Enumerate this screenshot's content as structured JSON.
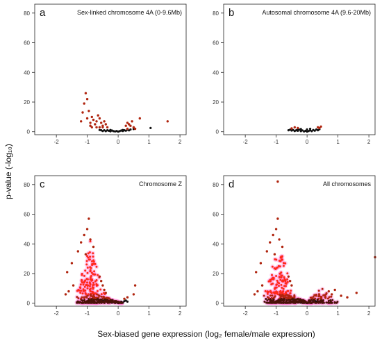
{
  "figure": {
    "xlabel": "Sex-biased gene expression (log₂ female/male expression)",
    "ylabel": "p-value (-log₁₀)"
  },
  "colors": {
    "sig": "#b0250f",
    "strong": "#ff2a1a",
    "nonsig": "#111111",
    "glow": "#ff7fd6"
  },
  "chart_data": [
    {
      "type": "scatter",
      "letter": "a",
      "title": "Sex-linked chromosome 4A (0-9.6Mb)",
      "xlim": [
        -2.7,
        2.2
      ],
      "ylim": [
        -2,
        86
      ],
      "xticks": [
        -2,
        -1,
        0,
        1,
        2
      ],
      "yticks": [
        0,
        20,
        40,
        60,
        80
      ],
      "sig_points": [
        [
          -1.05,
          26
        ],
        [
          -1.1,
          19
        ],
        [
          -1.0,
          22
        ],
        [
          -0.95,
          14
        ],
        [
          -1.15,
          13
        ],
        [
          -0.85,
          10
        ],
        [
          -0.8,
          8
        ],
        [
          -0.9,
          6
        ],
        [
          -0.75,
          5
        ],
        [
          -0.7,
          7
        ],
        [
          -0.65,
          11
        ],
        [
          -0.6,
          9
        ],
        [
          -0.55,
          6
        ],
        [
          -0.5,
          4
        ],
        [
          -0.45,
          7
        ],
        [
          -0.4,
          5
        ],
        [
          -0.85,
          3
        ],
        [
          -0.7,
          3
        ],
        [
          -0.5,
          3
        ],
        [
          -1.0,
          9
        ],
        [
          -1.2,
          7
        ],
        [
          -0.9,
          4
        ],
        [
          -0.6,
          3
        ],
        [
          -0.35,
          3
        ],
        [
          0.25,
          4
        ],
        [
          0.3,
          6
        ],
        [
          0.35,
          5
        ],
        [
          0.4,
          4
        ],
        [
          0.45,
          7
        ],
        [
          0.7,
          9
        ],
        [
          1.6,
          7
        ],
        [
          0.55,
          2
        ],
        [
          0.5,
          3
        ],
        [
          0.3,
          2
        ]
      ],
      "nonsig_points": [
        [
          -0.55,
          1
        ],
        [
          -0.5,
          0.5
        ],
        [
          -0.45,
          1
        ],
        [
          -0.4,
          0.4
        ],
        [
          -0.35,
          1
        ],
        [
          -0.3,
          0.6
        ],
        [
          -0.25,
          0.3
        ],
        [
          -0.2,
          0.8
        ],
        [
          -0.15,
          0.4
        ],
        [
          -0.1,
          0.2
        ],
        [
          -0.05,
          0.5
        ],
        [
          0.0,
          0.1
        ],
        [
          0.05,
          0.4
        ],
        [
          0.1,
          0.8
        ],
        [
          0.15,
          0.5
        ],
        [
          0.2,
          1
        ],
        [
          0.25,
          0.7
        ],
        [
          0.3,
          1.3
        ],
        [
          0.35,
          0.9
        ],
        [
          0.4,
          1.5
        ],
        [
          0.5,
          1.8
        ],
        [
          1.05,
          2.5
        ],
        [
          -0.6,
          1.2
        ],
        [
          -0.25,
          1.2
        ],
        [
          0.15,
          1.2
        ]
      ]
    },
    {
      "type": "scatter",
      "letter": "b",
      "title": "Autosomal chromosome 4A (9.6-20Mb)",
      "xlim": [
        -2.7,
        2.2
      ],
      "ylim": [
        -2,
        86
      ],
      "xticks": [
        -2,
        -1,
        0,
        1,
        2
      ],
      "yticks": [
        0,
        20,
        40,
        60,
        80
      ],
      "sig_points": [
        [
          -0.4,
          3
        ],
        [
          -0.3,
          2.5
        ],
        [
          0.35,
          3
        ],
        [
          0.45,
          3.5
        ],
        [
          0.4,
          2.5
        ],
        [
          -0.5,
          2.2
        ]
      ],
      "nonsig_points": [
        [
          -0.6,
          1
        ],
        [
          -0.55,
          1.4
        ],
        [
          -0.5,
          0.8
        ],
        [
          -0.45,
          1.2
        ],
        [
          -0.4,
          0.5
        ],
        [
          -0.35,
          1
        ],
        [
          -0.3,
          0.6
        ],
        [
          -0.25,
          1.4
        ],
        [
          -0.2,
          0.4
        ],
        [
          -0.15,
          0.9
        ],
        [
          -0.1,
          0.2
        ],
        [
          -0.05,
          0.6
        ],
        [
          0.0,
          0.1
        ],
        [
          0.05,
          0.5
        ],
        [
          0.1,
          1
        ],
        [
          0.15,
          0.4
        ],
        [
          0.2,
          1.2
        ],
        [
          0.25,
          0.7
        ],
        [
          0.3,
          1.5
        ],
        [
          0.35,
          1
        ],
        [
          0.4,
          1.7
        ],
        [
          -0.2,
          1.8
        ],
        [
          0.1,
          2
        ],
        [
          0.0,
          1.6
        ],
        [
          -0.3,
          1.9
        ]
      ]
    },
    {
      "type": "scatter",
      "letter": "c",
      "title": "Chromosome Z",
      "xlim": [
        -2.7,
        2.2
      ],
      "ylim": [
        -2,
        86
      ],
      "xticks": [
        -2,
        -1,
        0,
        1,
        2
      ],
      "yticks": [
        0,
        20,
        40,
        60,
        80
      ],
      "cluster": {
        "center_x": -0.9,
        "x_spread": 0.33,
        "max_y": 42,
        "count": 320,
        "seed": 7,
        "tail_to_x": 0.15
      },
      "sig_points": [
        [
          -0.95,
          57
        ],
        [
          -1.0,
          50
        ],
        [
          -1.1,
          46
        ],
        [
          -0.9,
          43
        ],
        [
          -1.2,
          41
        ],
        [
          -0.8,
          38
        ],
        [
          -1.3,
          35
        ],
        [
          -1.05,
          33
        ],
        [
          -1.5,
          27
        ],
        [
          -1.65,
          21
        ],
        [
          -1.45,
          12
        ],
        [
          -1.6,
          8
        ],
        [
          -1.7,
          6
        ],
        [
          -0.6,
          18
        ],
        [
          -0.55,
          15
        ],
        [
          -0.5,
          12
        ],
        [
          -0.45,
          9
        ],
        [
          -0.4,
          7
        ],
        [
          0.55,
          12
        ],
        [
          0.5,
          6
        ],
        [
          0.3,
          4
        ],
        [
          0.2,
          3
        ]
      ],
      "nonsig_points": [
        [
          -0.35,
          1
        ],
        [
          -0.3,
          0.5
        ],
        [
          -0.25,
          1.2
        ],
        [
          -0.2,
          0.4
        ],
        [
          -0.15,
          0.8
        ],
        [
          -0.1,
          0.2
        ],
        [
          -0.05,
          0.6
        ],
        [
          0.0,
          0.1
        ],
        [
          0.05,
          0.5
        ],
        [
          0.1,
          1
        ],
        [
          0.15,
          0.4
        ],
        [
          0.2,
          1.4
        ],
        [
          0.25,
          1.8
        ],
        [
          0.3,
          1.1
        ],
        [
          -0.4,
          2
        ],
        [
          -0.45,
          2.5
        ],
        [
          -0.5,
          1.5
        ]
      ]
    },
    {
      "type": "scatter",
      "letter": "d",
      "title": "All chromosomes",
      "xlim": [
        -2.7,
        2.2
      ],
      "ylim": [
        -2,
        86
      ],
      "xticks": [
        -2,
        -1,
        0,
        1,
        2
      ],
      "yticks": [
        0,
        20,
        40,
        60,
        80
      ],
      "cluster": {
        "center_x": -0.9,
        "x_spread": 0.33,
        "max_y": 42,
        "count": 330,
        "seed": 11,
        "tail_to_x": 0.15
      },
      "cluster2": {
        "center_x": 0.45,
        "x_spread": 0.35,
        "max_y": 11,
        "count": 90,
        "seed": 23
      },
      "sig_points": [
        [
          -0.95,
          82
        ],
        [
          -0.95,
          57
        ],
        [
          -1.0,
          50
        ],
        [
          -1.1,
          46
        ],
        [
          -0.9,
          43
        ],
        [
          -1.2,
          41
        ],
        [
          -0.8,
          38
        ],
        [
          -1.3,
          35
        ],
        [
          -1.05,
          33
        ],
        [
          -1.5,
          27
        ],
        [
          -1.65,
          21
        ],
        [
          -1.45,
          12
        ],
        [
          -1.6,
          8
        ],
        [
          -1.7,
          6
        ],
        [
          -0.6,
          18
        ],
        [
          -0.55,
          15
        ],
        [
          -0.5,
          12
        ],
        [
          0.9,
          9
        ],
        [
          1.1,
          5
        ],
        [
          1.3,
          4
        ],
        [
          1.6,
          7
        ],
        [
          2.2,
          31
        ],
        [
          0.7,
          8
        ],
        [
          0.8,
          6
        ]
      ],
      "nonsig_points": [
        [
          -0.35,
          1
        ],
        [
          -0.3,
          0.5
        ],
        [
          -0.25,
          1.2
        ],
        [
          -0.2,
          0.4
        ],
        [
          -0.15,
          0.8
        ],
        [
          -0.1,
          0.2
        ],
        [
          -0.05,
          0.6
        ],
        [
          0.0,
          0.1
        ],
        [
          0.05,
          0.5
        ],
        [
          0.1,
          1
        ],
        [
          0.15,
          0.4
        ],
        [
          0.2,
          1.4
        ],
        [
          0.25,
          1.8
        ],
        [
          0.3,
          1.1
        ],
        [
          0.35,
          0.8
        ],
        [
          0.4,
          1.2
        ],
        [
          -0.4,
          2
        ],
        [
          -0.45,
          2.5
        ]
      ]
    }
  ]
}
